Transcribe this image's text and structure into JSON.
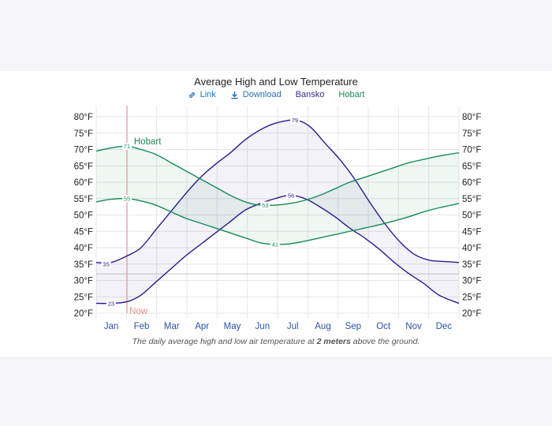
{
  "title": "Average High and Low Temperature",
  "toolbar": {
    "link_label": "Link",
    "download_label": "Download",
    "series_a": "Bansko",
    "series_b": "Hobart"
  },
  "caption": {
    "before": "The daily average high and low air temperature at ",
    "bold": "2 meters",
    "after": " above the ground."
  },
  "colors": {
    "bansko": "#2a1a8c",
    "hobart": "#1a8a55",
    "now": "#f08a8a",
    "link": "#2a6fb5"
  },
  "chart_data": {
    "type": "line",
    "title": "Average High and Low Temperature",
    "ylim": [
      20,
      80
    ],
    "yticks": [
      "20°F",
      "25°F",
      "30°F",
      "35°F",
      "40°F",
      "45°F",
      "50°F",
      "55°F",
      "60°F",
      "65°F",
      "70°F",
      "75°F",
      "80°F"
    ],
    "ytick_values": [
      20,
      25,
      30,
      35,
      40,
      45,
      50,
      55,
      60,
      65,
      70,
      75,
      80
    ],
    "months": [
      "Jan",
      "Feb",
      "Mar",
      "Apr",
      "May",
      "Jun",
      "Jul",
      "Aug",
      "Sep",
      "Oct",
      "Nov",
      "Dec"
    ],
    "x_day_range": [
      0,
      365
    ],
    "now_label": "Now",
    "now_day": 31,
    "inline_label": "Hobart",
    "series": [
      {
        "name": "Bansko high",
        "color_key": "bansko",
        "points": [
          [
            0,
            35.5
          ],
          [
            15,
            35.5
          ],
          [
            31,
            37.5
          ],
          [
            45,
            40
          ],
          [
            60,
            45.5
          ],
          [
            75,
            51
          ],
          [
            90,
            56.5
          ],
          [
            105,
            61.5
          ],
          [
            120,
            65.5
          ],
          [
            135,
            69
          ],
          [
            150,
            73
          ],
          [
            165,
            76
          ],
          [
            180,
            78
          ],
          [
            200,
            79
          ],
          [
            215,
            77
          ],
          [
            230,
            72
          ],
          [
            245,
            67
          ],
          [
            260,
            61
          ],
          [
            275,
            54
          ],
          [
            290,
            47.5
          ],
          [
            305,
            42
          ],
          [
            320,
            38
          ],
          [
            335,
            36.2
          ],
          [
            350,
            35.8
          ],
          [
            365,
            35.5
          ]
        ],
        "labels": [
          {
            "day": 10,
            "value": 35,
            "text": "35"
          },
          {
            "day": 200,
            "value": 79,
            "text": "79"
          }
        ]
      },
      {
        "name": "Bansko low",
        "color_key": "bansko",
        "points": [
          [
            0,
            23
          ],
          [
            15,
            23
          ],
          [
            31,
            23.5
          ],
          [
            45,
            25.5
          ],
          [
            60,
            29.5
          ],
          [
            75,
            33.5
          ],
          [
            90,
            37.5
          ],
          [
            105,
            41
          ],
          [
            120,
            44.5
          ],
          [
            135,
            48
          ],
          [
            150,
            51.5
          ],
          [
            165,
            53.5
          ],
          [
            180,
            55
          ],
          [
            195,
            56
          ],
          [
            210,
            55
          ],
          [
            225,
            52.5
          ],
          [
            240,
            49.5
          ],
          [
            255,
            46
          ],
          [
            270,
            43
          ],
          [
            285,
            39.5
          ],
          [
            300,
            35.5
          ],
          [
            315,
            32
          ],
          [
            330,
            29
          ],
          [
            345,
            25.5
          ],
          [
            365,
            23
          ]
        ],
        "labels": [
          {
            "day": 15,
            "value": 23,
            "text": "23"
          },
          {
            "day": 196,
            "value": 56,
            "text": "56"
          }
        ]
      },
      {
        "name": "Hobart high",
        "color_key": "hobart",
        "points": [
          [
            0,
            69.5
          ],
          [
            15,
            70.5
          ],
          [
            31,
            71
          ],
          [
            45,
            70
          ],
          [
            60,
            68.5
          ],
          [
            75,
            66
          ],
          [
            90,
            63.5
          ],
          [
            105,
            61
          ],
          [
            120,
            58.5
          ],
          [
            135,
            56
          ],
          [
            150,
            54
          ],
          [
            165,
            53
          ],
          [
            180,
            53
          ],
          [
            195,
            53.5
          ],
          [
            210,
            54.5
          ],
          [
            225,
            56
          ],
          [
            240,
            58
          ],
          [
            255,
            60
          ],
          [
            270,
            61.5
          ],
          [
            285,
            63
          ],
          [
            300,
            64.5
          ],
          [
            315,
            66
          ],
          [
            330,
            67
          ],
          [
            345,
            68
          ],
          [
            365,
            69
          ]
        ],
        "labels": [
          {
            "day": 31,
            "value": 71,
            "text": "71"
          },
          {
            "day": 170,
            "value": 53,
            "text": "53"
          }
        ]
      },
      {
        "name": "Hobart low",
        "color_key": "hobart",
        "points": [
          [
            0,
            54
          ],
          [
            15,
            54.8
          ],
          [
            31,
            55
          ],
          [
            45,
            54.3
          ],
          [
            60,
            53
          ],
          [
            75,
            51
          ],
          [
            90,
            49
          ],
          [
            105,
            47.5
          ],
          [
            120,
            46
          ],
          [
            135,
            44.5
          ],
          [
            150,
            43
          ],
          [
            165,
            41.5
          ],
          [
            180,
            41
          ],
          [
            195,
            41.2
          ],
          [
            210,
            42
          ],
          [
            225,
            43
          ],
          [
            240,
            44
          ],
          [
            255,
            45
          ],
          [
            270,
            46
          ],
          [
            285,
            47
          ],
          [
            300,
            48.2
          ],
          [
            315,
            49.5
          ],
          [
            330,
            51
          ],
          [
            345,
            52.2
          ],
          [
            365,
            53.5
          ]
        ],
        "labels": [
          {
            "day": 31,
            "value": 55,
            "text": "55"
          },
          {
            "day": 180,
            "value": 41,
            "text": "41"
          }
        ]
      }
    ]
  }
}
